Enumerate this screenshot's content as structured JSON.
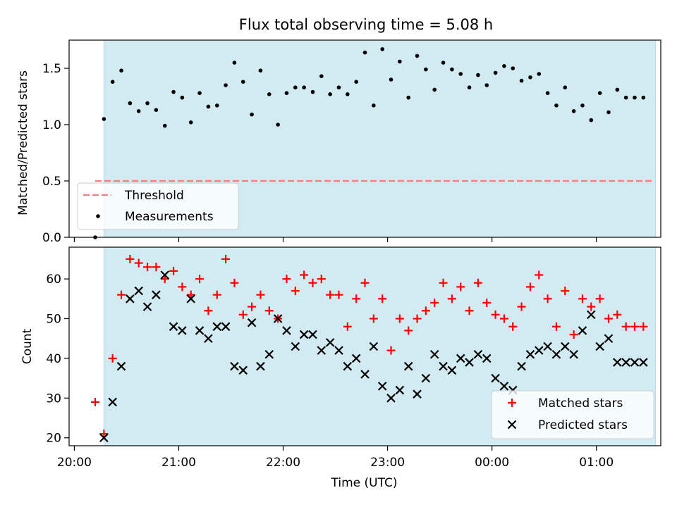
{
  "title": "Flux total observing time = 5.08 h",
  "chart_data": [
    {
      "type": "scatter",
      "ylabel": "Matched/Predicted stars",
      "ylim": [
        0,
        1.75
      ],
      "yticks": [
        0.0,
        0.5,
        1.0,
        1.5
      ],
      "ytick_labels": [
        "0.0",
        "0.5",
        "1.0",
        "1.5"
      ],
      "xlim": [
        "19:57",
        "01:37"
      ],
      "shaded_span": [
        "20:17",
        "01:34"
      ],
      "shade_color": "#add8e6",
      "legend_position": "lower-left",
      "threshold": {
        "name": "Threshold",
        "value": 0.5,
        "x_range": [
          "20:12",
          "01:33"
        ],
        "color": "#f08080"
      },
      "series": [
        {
          "name": "Measurements",
          "color": "#000000",
          "x": [
            "20:12",
            "20:17",
            "20:22",
            "20:27",
            "20:32",
            "20:37",
            "20:42",
            "20:47",
            "20:52",
            "20:57",
            "21:02",
            "21:07",
            "21:12",
            "21:17",
            "21:22",
            "21:27",
            "21:32",
            "21:37",
            "21:42",
            "21:47",
            "21:52",
            "21:57",
            "22:02",
            "22:07",
            "22:12",
            "22:17",
            "22:22",
            "22:27",
            "22:32",
            "22:37",
            "22:42",
            "22:47",
            "22:52",
            "22:57",
            "23:02",
            "23:07",
            "23:12",
            "23:17",
            "23:22",
            "23:27",
            "23:32",
            "23:37",
            "23:42",
            "23:47",
            "23:52",
            "23:57",
            "00:02",
            "00:07",
            "00:12",
            "00:17",
            "00:22",
            "00:27",
            "00:32",
            "00:37",
            "00:42",
            "00:47",
            "00:52",
            "00:57",
            "01:02",
            "01:07",
            "01:12",
            "01:17",
            "01:22",
            "01:27"
          ],
          "y": [
            0.0,
            1.05,
            1.38,
            1.48,
            1.19,
            1.12,
            1.19,
            1.13,
            0.99,
            1.29,
            1.24,
            1.02,
            1.28,
            1.16,
            1.17,
            1.35,
            1.55,
            1.38,
            1.09,
            1.48,
            1.27,
            1.0,
            1.28,
            1.33,
            1.33,
            1.29,
            1.43,
            1.27,
            1.33,
            1.27,
            1.38,
            1.64,
            1.17,
            1.67,
            1.4,
            1.56,
            1.24,
            1.61,
            1.49,
            1.31,
            1.55,
            1.49,
            1.45,
            1.33,
            1.44,
            1.35,
            1.46,
            1.52,
            1.5,
            1.39,
            1.42,
            1.45,
            1.28,
            1.17,
            1.33,
            1.12,
            1.17,
            1.04,
            1.28,
            1.11,
            1.31,
            1.24,
            1.24,
            1.24
          ]
        }
      ]
    },
    {
      "type": "scatter",
      "ylabel": "Count",
      "xlabel": "Time (UTC)",
      "ylim": [
        18,
        68
      ],
      "yticks": [
        20,
        30,
        40,
        50,
        60
      ],
      "ytick_labels": [
        "20",
        "30",
        "40",
        "50",
        "60"
      ],
      "xlim": [
        "19:57",
        "01:37"
      ],
      "xticks": [
        "20:00",
        "21:00",
        "22:00",
        "23:00",
        "00:00",
        "01:00"
      ],
      "shaded_span": [
        "20:17",
        "01:34"
      ],
      "shade_color": "#add8e6",
      "legend_position": "lower-right",
      "series": [
        {
          "name": "Matched stars",
          "color": "#ff0000",
          "marker": "+",
          "x": [
            "20:12",
            "20:17",
            "20:22",
            "20:27",
            "20:32",
            "20:37",
            "20:42",
            "20:47",
            "20:52",
            "20:57",
            "21:02",
            "21:07",
            "21:12",
            "21:17",
            "21:22",
            "21:27",
            "21:32",
            "21:37",
            "21:42",
            "21:47",
            "21:52",
            "21:57",
            "22:02",
            "22:07",
            "22:12",
            "22:17",
            "22:22",
            "22:27",
            "22:32",
            "22:37",
            "22:42",
            "22:47",
            "22:52",
            "22:57",
            "23:02",
            "23:07",
            "23:12",
            "23:17",
            "23:22",
            "23:27",
            "23:32",
            "23:37",
            "23:42",
            "23:47",
            "23:52",
            "23:57",
            "00:02",
            "00:07",
            "00:12",
            "00:17",
            "00:22",
            "00:27",
            "00:32",
            "00:37",
            "00:42",
            "00:47",
            "00:52",
            "00:57",
            "01:02",
            "01:07",
            "01:12",
            "01:17",
            "01:22",
            "01:27"
          ],
          "y": [
            29,
            21,
            40,
            56,
            65,
            64,
            63,
            63,
            60,
            62,
            58,
            56,
            60,
            52,
            56,
            65,
            59,
            51,
            53,
            56,
            52,
            50,
            60,
            57,
            61,
            59,
            60,
            56,
            56,
            48,
            55,
            59,
            50,
            55,
            42,
            50,
            47,
            50,
            52,
            54,
            59,
            55,
            58,
            52,
            59,
            54,
            51,
            50,
            48,
            53,
            58,
            61,
            55,
            48,
            57,
            46,
            55,
            53,
            55,
            50,
            51,
            48,
            48,
            48
          ]
        },
        {
          "name": "Predicted stars",
          "color": "#000000",
          "marker": "x",
          "x": [
            "20:17",
            "20:22",
            "20:27",
            "20:32",
            "20:37",
            "20:42",
            "20:47",
            "20:52",
            "20:57",
            "21:02",
            "21:07",
            "21:12",
            "21:17",
            "21:22",
            "21:27",
            "21:32",
            "21:37",
            "21:42",
            "21:47",
            "21:52",
            "21:57",
            "22:02",
            "22:07",
            "22:12",
            "22:17",
            "22:22",
            "22:27",
            "22:32",
            "22:37",
            "22:42",
            "22:47",
            "22:52",
            "22:57",
            "23:02",
            "23:07",
            "23:12",
            "23:17",
            "23:22",
            "23:27",
            "23:32",
            "23:37",
            "23:42",
            "23:47",
            "23:52",
            "23:57",
            "00:02",
            "00:07",
            "00:12",
            "00:17",
            "00:22",
            "00:27",
            "00:32",
            "00:37",
            "00:42",
            "00:47",
            "00:52",
            "00:57",
            "01:02",
            "01:07",
            "01:12",
            "01:17",
            "01:22",
            "01:27"
          ],
          "y": [
            20,
            29,
            38,
            55,
            57,
            53,
            56,
            61,
            48,
            47,
            55,
            47,
            45,
            48,
            48,
            38,
            37,
            49,
            38,
            41,
            50,
            47,
            43,
            46,
            46,
            42,
            44,
            42,
            38,
            40,
            36,
            43,
            33,
            30,
            32,
            38,
            31,
            35,
            41,
            38,
            37,
            40,
            39,
            41,
            40,
            35,
            33,
            32,
            38,
            41,
            42,
            43,
            41,
            43,
            41,
            47,
            51,
            43,
            45,
            39,
            39,
            39,
            39
          ]
        }
      ]
    }
  ]
}
